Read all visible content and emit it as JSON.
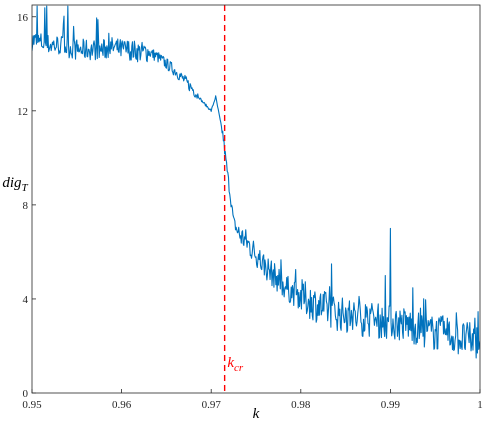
{
  "chart_data": {
    "type": "line",
    "xlabel": "k",
    "ylabel": "dig",
    "ylabel_subscript": "T",
    "xlim": [
      0.95,
      1.0
    ],
    "ylim": [
      0,
      16.5
    ],
    "x_ticks": [
      0.95,
      0.96,
      0.97,
      0.98,
      0.99,
      1.0
    ],
    "x_tick_labels": [
      "0.95",
      "0.96",
      "0.97",
      "0.98",
      "0.99",
      "1"
    ],
    "y_ticks": [
      0,
      4,
      8,
      12,
      16
    ],
    "y_tick_labels": [
      "0",
      "4",
      "8",
      "12",
      "16"
    ],
    "grid": false,
    "series": [
      {
        "color": "#0072BD",
        "x": [
          0.95,
          0.951,
          0.952,
          0.953,
          0.954,
          0.955,
          0.956,
          0.957,
          0.958,
          0.959,
          0.96,
          0.961,
          0.962,
          0.963,
          0.964,
          0.965,
          0.966,
          0.967,
          0.968,
          0.969,
          0.97,
          0.9705,
          0.971,
          0.9713,
          0.9716,
          0.972,
          0.9725,
          0.973,
          0.974,
          0.975,
          0.976,
          0.977,
          0.978,
          0.979,
          0.98,
          0.982,
          0.984,
          0.986,
          0.988,
          0.99,
          0.992,
          0.994,
          0.996,
          0.998,
          1.0
        ],
        "y": [
          15.0,
          14.9,
          14.8,
          14.8,
          14.7,
          14.6,
          14.6,
          14.6,
          14.6,
          14.7,
          14.6,
          14.6,
          14.5,
          14.5,
          14.3,
          14.0,
          13.7,
          13.3,
          12.9,
          12.4,
          12.0,
          12.6,
          11.6,
          11.0,
          10.0,
          8.8,
          7.3,
          6.8,
          6.4,
          5.9,
          5.4,
          5.0,
          4.6,
          4.3,
          4.1,
          3.7,
          3.4,
          3.2,
          3.1,
          3.0,
          2.9,
          2.6,
          2.5,
          2.3,
          2.2
        ]
      }
    ],
    "vertical_line": {
      "x": 0.9715,
      "color": "#FF0000",
      "style": "dashed"
    },
    "annotation": {
      "text": "k",
      "subscript": "cr",
      "x": 0.9718,
      "y": 1.1,
      "color": "#FF0000"
    }
  }
}
